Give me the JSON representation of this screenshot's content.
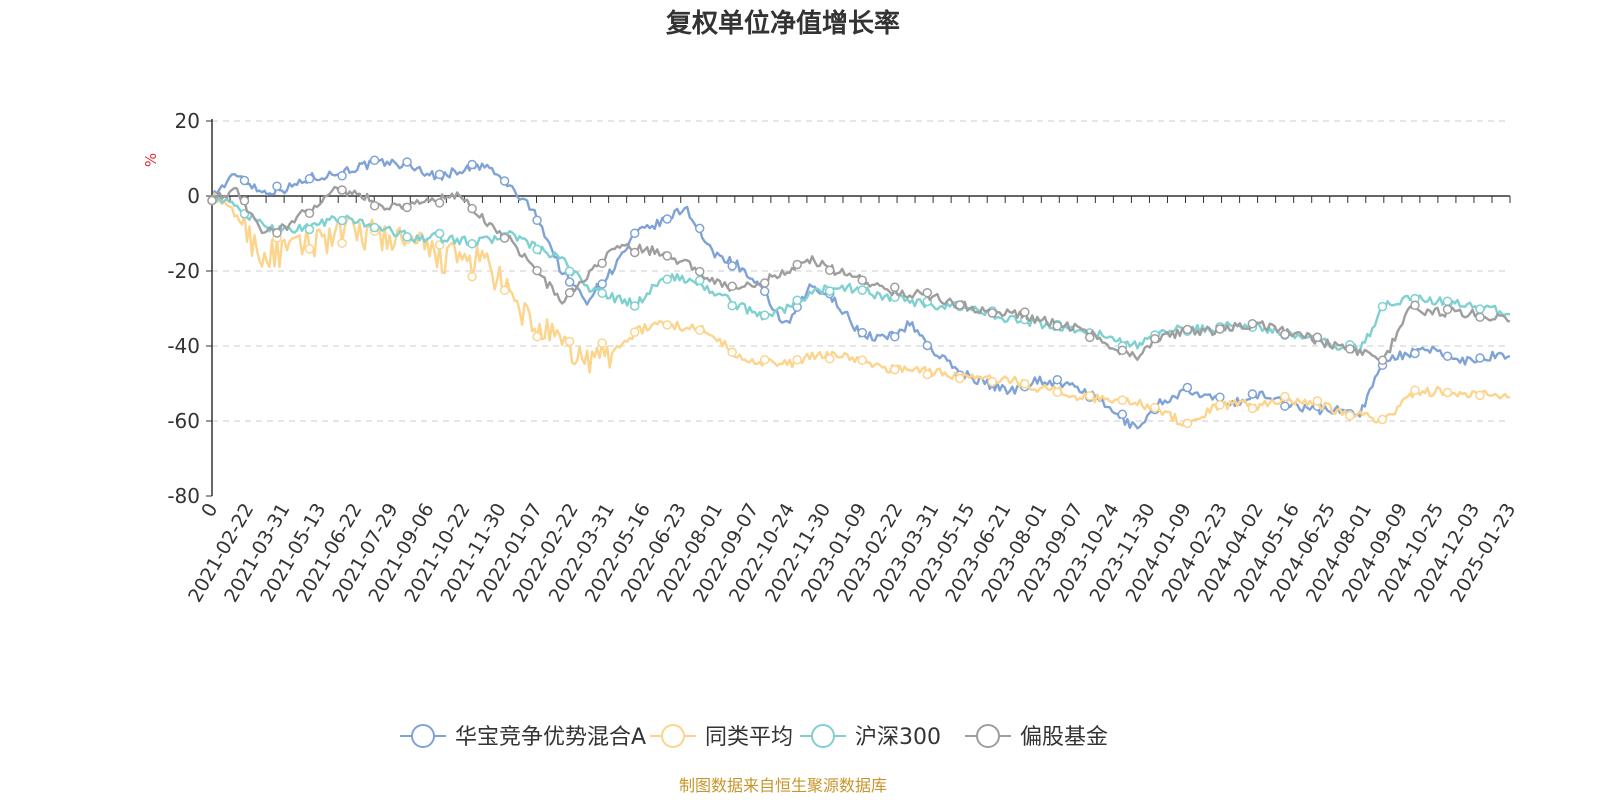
{
  "chart_data": {
    "type": "line",
    "title": "复权单位净值增长率",
    "ylabel": "%",
    "ylim": [
      -80,
      20
    ],
    "yticks": [
      20,
      0,
      -20,
      -40,
      -60,
      -80
    ],
    "grid": true,
    "legend_position": "bottom-center",
    "source": "制图数据来自恒生聚源数据库",
    "x_tick_labels": [
      "0",
      "2021-02-22",
      "2021-03-31",
      "2021-05-13",
      "2021-06-22",
      "2021-07-29",
      "2021-09-06",
      "2021-10-22",
      "2021-11-30",
      "2022-01-07",
      "2022-02-22",
      "2022-03-31",
      "2022-05-16",
      "2022-06-23",
      "2022-08-01",
      "2022-09-07",
      "2022-10-24",
      "2022-11-30",
      "2023-01-09",
      "2023-02-22",
      "2023-03-31",
      "2023-05-15",
      "2023-06-21",
      "2023-08-01",
      "2023-09-07",
      "2023-10-24",
      "2023-11-30",
      "2024-01-09",
      "2024-02-23",
      "2024-04-02",
      "2024-05-16",
      "2024-06-25",
      "2024-08-01",
      "2024-09-09",
      "2024-10-25",
      "2024-12-03",
      "2025-01-23"
    ],
    "series": [
      {
        "name": "华宝竞争优势混合A",
        "color": "#7fa3d6",
        "values": [
          0,
          6,
          1,
          2,
          5,
          6,
          8,
          9,
          8,
          5,
          7,
          8,
          2,
          -5,
          -20,
          -28,
          -20,
          -10,
          -7,
          -3,
          -15,
          -18,
          -25,
          -35,
          -24,
          -28,
          -37,
          -38,
          -34,
          -42,
          -47,
          -50,
          -52,
          -49,
          -50,
          -52,
          -57,
          -62,
          -55,
          -52,
          -54,
          -55,
          -53,
          -55,
          -57,
          -57,
          -58,
          -43,
          -42,
          -41,
          -44,
          -43,
          -42
        ]
      },
      {
        "name": "同类平均",
        "color": "#fcd48c",
        "values": [
          0,
          -5,
          -16,
          -15,
          -12,
          -10,
          -10,
          -11,
          -13,
          -16,
          -17,
          -18,
          -28,
          -35,
          -40,
          -44,
          -42,
          -36,
          -34,
          -35,
          -36,
          -43,
          -44,
          -45,
          -43,
          -42,
          -44,
          -46,
          -46,
          -47,
          -48,
          -49,
          -49,
          -51,
          -52,
          -54,
          -54,
          -55,
          -57,
          -61,
          -57,
          -55,
          -56,
          -54,
          -55,
          -57,
          -58,
          -60,
          -53,
          -52,
          -53,
          -53,
          -53
        ]
      },
      {
        "name": "沪深300",
        "color": "#7fd0d0",
        "values": [
          0,
          -3,
          -8,
          -9,
          -8,
          -6,
          -7,
          -9,
          -11,
          -11,
          -12,
          -12,
          -10,
          -14,
          -17,
          -24,
          -27,
          -29,
          -22,
          -22,
          -25,
          -29,
          -32,
          -30,
          -26,
          -24,
          -25,
          -27,
          -28,
          -30,
          -29,
          -31,
          -33,
          -34,
          -35,
          -36,
          -38,
          -40,
          -37,
          -35,
          -36,
          -34,
          -35,
          -37,
          -38,
          -40,
          -41,
          -29,
          -27,
          -28,
          -29,
          -30,
          -31
        ]
      },
      {
        "name": "偏股基金",
        "color": "#9e9e9e",
        "values": [
          0,
          1,
          -10,
          -8,
          -3,
          2,
          0,
          -3,
          -2,
          -1,
          0,
          -7,
          -12,
          -20,
          -28,
          -22,
          -14,
          -14,
          -15,
          -18,
          -22,
          -25,
          -23,
          -20,
          -17,
          -20,
          -22,
          -25,
          -26,
          -27,
          -29,
          -31,
          -31,
          -33,
          -34,
          -36,
          -40,
          -43,
          -38,
          -36,
          -36,
          -35,
          -34,
          -36,
          -38,
          -40,
          -42,
          -43,
          -30,
          -31,
          -31,
          -32,
          -33
        ]
      }
    ]
  }
}
